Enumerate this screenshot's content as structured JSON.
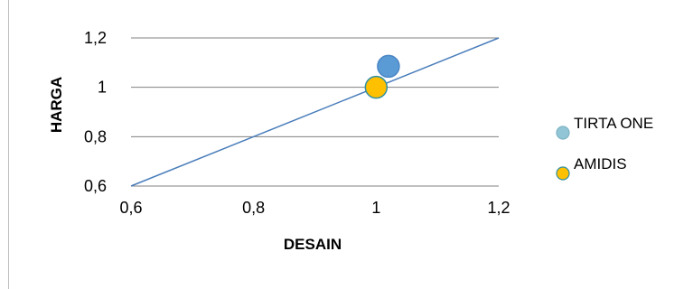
{
  "chart_data": {
    "type": "bubble",
    "xlabel": "DESAIN",
    "ylabel": "HARGA",
    "xlim": [
      0.6,
      1.2
    ],
    "ylim": [
      0.6,
      1.2
    ],
    "x_ticks": [
      "0,6",
      "0,8",
      "1",
      "1,2"
    ],
    "y_ticks": [
      "0,6",
      "0,8",
      "1",
      "1,2"
    ],
    "grid": "horizontal",
    "legend_position": "right",
    "series": [
      {
        "name": "TIRTA ONE",
        "x": 1.02,
        "y": 1.085,
        "color": "#5b9bd5",
        "legend_color": "#92c6d6"
      },
      {
        "name": "AMIDIS",
        "x": 1.0,
        "y": 1.0,
        "color": "#ffc000",
        "legend_color": "#ffc000"
      }
    ],
    "reference_line": {
      "from": [
        0.6,
        0.6
      ],
      "to": [
        1.2,
        1.2
      ],
      "color": "#4a7ebb"
    }
  }
}
